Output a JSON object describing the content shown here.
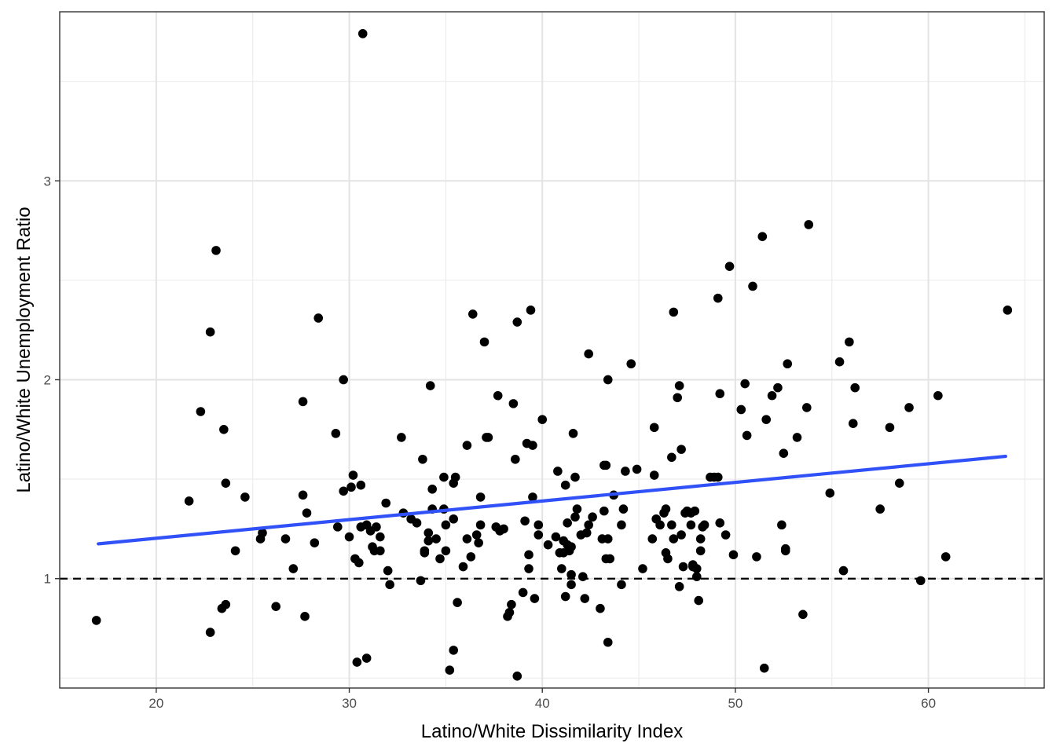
{
  "chart_data": {
    "type": "scatter",
    "title": "",
    "xlabel": "Latino/White Dissimilarity Index",
    "ylabel": "Latino/White Unemployment Ratio",
    "xlim": [
      15,
      66
    ],
    "ylim": [
      0.45,
      3.85
    ],
    "x_ticks": [
      20,
      30,
      40,
      50,
      60
    ],
    "y_ticks": [
      1,
      2,
      3
    ],
    "x_tick_labels": [
      "20",
      "30",
      "40",
      "50",
      "60"
    ],
    "y_tick_labels": [
      "1",
      "2",
      "3"
    ],
    "grid": true,
    "reference_line": {
      "y": 1,
      "style": "dashed",
      "color": "#000000"
    },
    "fit_line": {
      "x": [
        17,
        64
      ],
      "y": [
        1.175,
        1.615
      ],
      "color": "#3050f8"
    },
    "point_color": "#000000",
    "points": [
      [
        16.9,
        0.79
      ],
      [
        21.7,
        1.39
      ],
      [
        22.3,
        1.84
      ],
      [
        22.8,
        2.24
      ],
      [
        22.8,
        0.73
      ],
      [
        23.1,
        2.65
      ],
      [
        23.4,
        0.85
      ],
      [
        23.5,
        1.75
      ],
      [
        23.6,
        0.87
      ],
      [
        23.6,
        1.48
      ],
      [
        24.1,
        1.14
      ],
      [
        24.6,
        1.41
      ],
      [
        25.4,
        1.2
      ],
      [
        25.5,
        1.23
      ],
      [
        26.2,
        0.86
      ],
      [
        26.7,
        1.2
      ],
      [
        27.1,
        1.05
      ],
      [
        27.6,
        1.89
      ],
      [
        27.6,
        1.42
      ],
      [
        27.7,
        0.81
      ],
      [
        27.8,
        1.33
      ],
      [
        28.2,
        1.18
      ],
      [
        28.4,
        2.31
      ],
      [
        29.3,
        1.73
      ],
      [
        29.4,
        1.26
      ],
      [
        29.7,
        1.44
      ],
      [
        29.7,
        2.0
      ],
      [
        30.0,
        1.21
      ],
      [
        30.1,
        1.46
      ],
      [
        30.2,
        1.52
      ],
      [
        30.3,
        1.1
      ],
      [
        30.4,
        0.58
      ],
      [
        30.5,
        1.08
      ],
      [
        30.6,
        1.26
      ],
      [
        30.6,
        1.47
      ],
      [
        30.7,
        3.74
      ],
      [
        30.9,
        0.6
      ],
      [
        30.9,
        1.27
      ],
      [
        31.1,
        1.24
      ],
      [
        31.2,
        1.16
      ],
      [
        31.3,
        1.14
      ],
      [
        31.4,
        1.26
      ],
      [
        31.6,
        1.21
      ],
      [
        31.6,
        1.14
      ],
      [
        31.9,
        1.38
      ],
      [
        32.0,
        1.04
      ],
      [
        32.1,
        0.97
      ],
      [
        32.7,
        1.71
      ],
      [
        32.8,
        1.33
      ],
      [
        33.2,
        1.3
      ],
      [
        33.5,
        1.28
      ],
      [
        33.7,
        0.99
      ],
      [
        33.8,
        1.6
      ],
      [
        33.9,
        1.13
      ],
      [
        33.9,
        1.14
      ],
      [
        34.1,
        1.23
      ],
      [
        34.1,
        1.19
      ],
      [
        34.2,
        1.97
      ],
      [
        34.3,
        1.45
      ],
      [
        34.3,
        1.35
      ],
      [
        34.5,
        1.2
      ],
      [
        34.7,
        1.1
      ],
      [
        34.9,
        1.35
      ],
      [
        34.9,
        1.51
      ],
      [
        35.0,
        1.27
      ],
      [
        35.0,
        1.14
      ],
      [
        35.2,
        0.54
      ],
      [
        35.4,
        1.3
      ],
      [
        35.4,
        1.48
      ],
      [
        35.4,
        0.64
      ],
      [
        35.5,
        1.51
      ],
      [
        35.6,
        0.88
      ],
      [
        35.9,
        1.06
      ],
      [
        36.1,
        1.2
      ],
      [
        36.1,
        1.67
      ],
      [
        36.3,
        1.11
      ],
      [
        36.4,
        2.33
      ],
      [
        36.6,
        1.22
      ],
      [
        36.7,
        1.18
      ],
      [
        36.8,
        1.27
      ],
      [
        36.8,
        1.41
      ],
      [
        37.0,
        2.19
      ],
      [
        37.1,
        1.71
      ],
      [
        37.2,
        1.71
      ],
      [
        37.6,
        1.26
      ],
      [
        37.7,
        1.92
      ],
      [
        37.8,
        1.24
      ],
      [
        38.0,
        1.25
      ],
      [
        38.2,
        0.81
      ],
      [
        38.3,
        0.83
      ],
      [
        38.4,
        0.87
      ],
      [
        38.5,
        1.88
      ],
      [
        38.6,
        1.6
      ],
      [
        38.7,
        0.51
      ],
      [
        38.7,
        2.29
      ],
      [
        39.0,
        0.93
      ],
      [
        39.1,
        1.29
      ],
      [
        39.2,
        1.68
      ],
      [
        39.3,
        1.12
      ],
      [
        39.3,
        1.05
      ],
      [
        39.4,
        2.35
      ],
      [
        39.5,
        1.41
      ],
      [
        39.5,
        1.67
      ],
      [
        39.6,
        0.9
      ],
      [
        39.8,
        1.22
      ],
      [
        39.8,
        1.27
      ],
      [
        40.0,
        1.8
      ],
      [
        40.3,
        1.17
      ],
      [
        40.7,
        1.21
      ],
      [
        40.8,
        1.54
      ],
      [
        40.9,
        1.13
      ],
      [
        41.0,
        1.05
      ],
      [
        41.1,
        1.13
      ],
      [
        41.1,
        1.19
      ],
      [
        41.2,
        0.91
      ],
      [
        41.2,
        1.47
      ],
      [
        41.3,
        1.28
      ],
      [
        41.3,
        1.17
      ],
      [
        41.4,
        1.14
      ],
      [
        41.5,
        0.97
      ],
      [
        41.5,
        1.16
      ],
      [
        41.5,
        1.02
      ],
      [
        41.6,
        1.73
      ],
      [
        41.7,
        1.31
      ],
      [
        41.7,
        1.51
      ],
      [
        41.8,
        1.35
      ],
      [
        42.0,
        1.22
      ],
      [
        42.1,
        1.01
      ],
      [
        42.2,
        0.9
      ],
      [
        42.3,
        1.23
      ],
      [
        42.4,
        1.27
      ],
      [
        42.4,
        2.13
      ],
      [
        42.6,
        1.31
      ],
      [
        43.0,
        0.85
      ],
      [
        43.1,
        1.2
      ],
      [
        43.2,
        1.34
      ],
      [
        43.2,
        1.57
      ],
      [
        43.3,
        1.1
      ],
      [
        43.3,
        1.57
      ],
      [
        43.4,
        0.68
      ],
      [
        43.4,
        1.2
      ],
      [
        43.4,
        2.0
      ],
      [
        43.5,
        1.1
      ],
      [
        43.7,
        1.42
      ],
      [
        44.1,
        1.27
      ],
      [
        44.1,
        0.97
      ],
      [
        44.2,
        1.35
      ],
      [
        44.3,
        1.54
      ],
      [
        44.6,
        2.08
      ],
      [
        44.9,
        1.55
      ],
      [
        45.2,
        1.05
      ],
      [
        45.7,
        1.2
      ],
      [
        45.8,
        1.76
      ],
      [
        45.8,
        1.52
      ],
      [
        45.9,
        1.3
      ],
      [
        46.1,
        1.27
      ],
      [
        46.3,
        1.33
      ],
      [
        46.4,
        1.35
      ],
      [
        46.4,
        1.13
      ],
      [
        46.5,
        1.1
      ],
      [
        46.7,
        1.27
      ],
      [
        46.7,
        1.61
      ],
      [
        46.8,
        2.34
      ],
      [
        46.8,
        1.2
      ],
      [
        47.0,
        1.91
      ],
      [
        47.1,
        1.97
      ],
      [
        47.1,
        0.96
      ],
      [
        47.2,
        1.65
      ],
      [
        47.2,
        1.22
      ],
      [
        47.3,
        1.06
      ],
      [
        47.4,
        1.33
      ],
      [
        47.5,
        1.34
      ],
      [
        47.7,
        1.33
      ],
      [
        47.7,
        1.27
      ],
      [
        47.8,
        1.07
      ],
      [
        47.8,
        1.06
      ],
      [
        47.9,
        1.34
      ],
      [
        48.0,
        1.01
      ],
      [
        48.0,
        1.05
      ],
      [
        48.1,
        0.89
      ],
      [
        48.2,
        1.2
      ],
      [
        48.2,
        1.14
      ],
      [
        48.3,
        1.26
      ],
      [
        48.4,
        1.27
      ],
      [
        48.7,
        1.51
      ],
      [
        48.9,
        1.51
      ],
      [
        49.1,
        1.51
      ],
      [
        49.1,
        2.41
      ],
      [
        49.2,
        1.93
      ],
      [
        49.2,
        1.28
      ],
      [
        49.5,
        1.22
      ],
      [
        49.7,
        2.57
      ],
      [
        49.9,
        1.12
      ],
      [
        50.3,
        1.85
      ],
      [
        50.5,
        1.98
      ],
      [
        50.6,
        1.72
      ],
      [
        50.9,
        2.47
      ],
      [
        51.1,
        1.11
      ],
      [
        51.4,
        2.72
      ],
      [
        51.5,
        0.55
      ],
      [
        51.6,
        1.8
      ],
      [
        51.9,
        1.92
      ],
      [
        52.2,
        1.96
      ],
      [
        52.4,
        1.27
      ],
      [
        52.5,
        1.63
      ],
      [
        52.6,
        1.15
      ],
      [
        52.6,
        1.14
      ],
      [
        52.7,
        2.08
      ],
      [
        53.2,
        1.71
      ],
      [
        53.5,
        0.82
      ],
      [
        53.7,
        1.86
      ],
      [
        53.8,
        2.78
      ],
      [
        54.9,
        1.43
      ],
      [
        55.4,
        2.09
      ],
      [
        55.6,
        1.04
      ],
      [
        55.9,
        2.19
      ],
      [
        56.1,
        1.78
      ],
      [
        56.2,
        1.96
      ],
      [
        57.5,
        1.35
      ],
      [
        58.0,
        1.76
      ],
      [
        58.5,
        1.48
      ],
      [
        59.0,
        1.86
      ],
      [
        59.6,
        0.99
      ],
      [
        60.5,
        1.92
      ],
      [
        60.9,
        1.11
      ],
      [
        64.1,
        2.35
      ]
    ]
  }
}
